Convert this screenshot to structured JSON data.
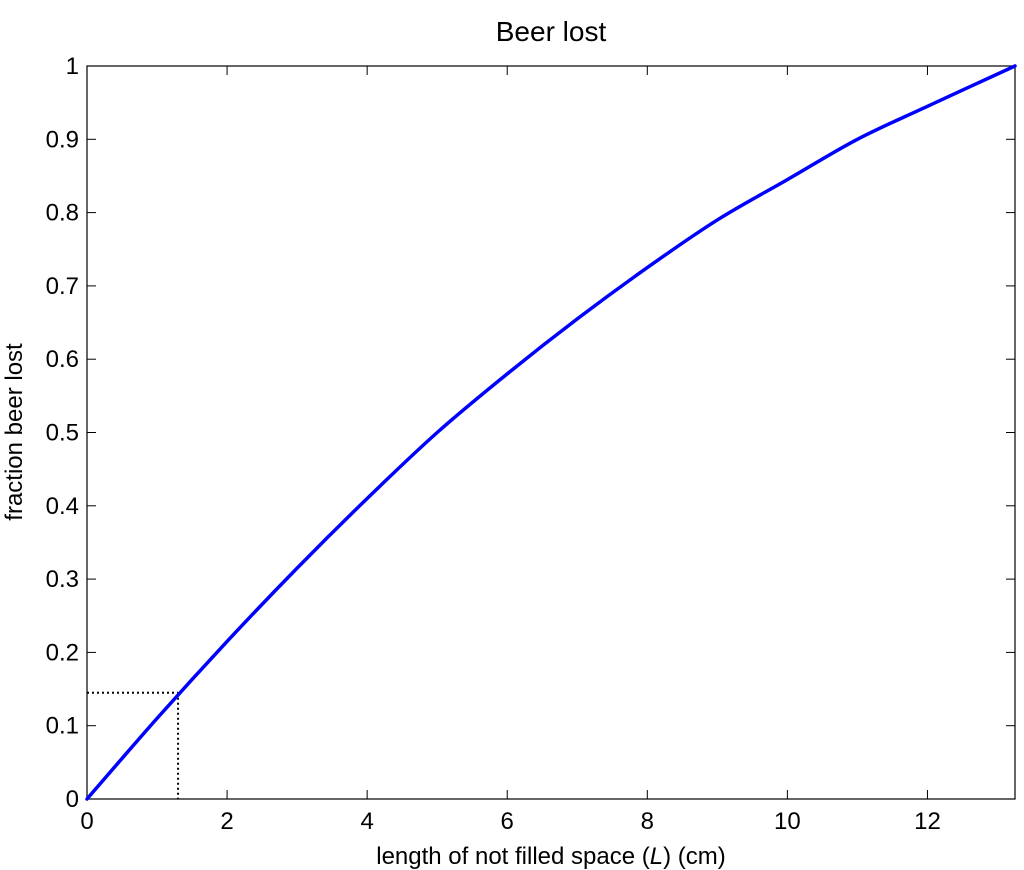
{
  "chart_data": {
    "type": "line",
    "title": "Beer lost",
    "xlabel_parts": [
      "length of not filled space (",
      "L",
      ") (cm)"
    ],
    "ylabel": "fraction beer lost",
    "xlim": [
      0,
      13.25
    ],
    "ylim": [
      0,
      1
    ],
    "grid": false,
    "legend": "none",
    "xticks": [
      0,
      2,
      4,
      6,
      8,
      10,
      12
    ],
    "xtick_labels": [
      "0",
      "2",
      "4",
      "6",
      "8",
      "10",
      "12"
    ],
    "yticks": [
      0,
      0.1,
      0.2,
      0.3,
      0.4,
      0.5,
      0.6,
      0.7,
      0.8,
      0.9,
      1
    ],
    "ytick_labels": [
      "0",
      "0.1",
      "0.2",
      "0.3",
      "0.4",
      "0.5",
      "0.6",
      "0.7",
      "0.8",
      "0.9",
      "1"
    ],
    "series": [
      {
        "color": "#0000ff",
        "x": [
          0,
          1,
          2,
          3,
          4,
          5,
          6,
          7,
          8,
          9,
          10,
          11,
          12,
          13.25
        ],
        "y": [
          0,
          0.11,
          0.215,
          0.315,
          0.41,
          0.5,
          0.58,
          0.655,
          0.725,
          0.79,
          0.845,
          0.9,
          0.945,
          1.0
        ]
      }
    ],
    "reference_point": {
      "x": 1.3,
      "y": 0.145,
      "style": "dotted",
      "color": "#000000"
    }
  }
}
